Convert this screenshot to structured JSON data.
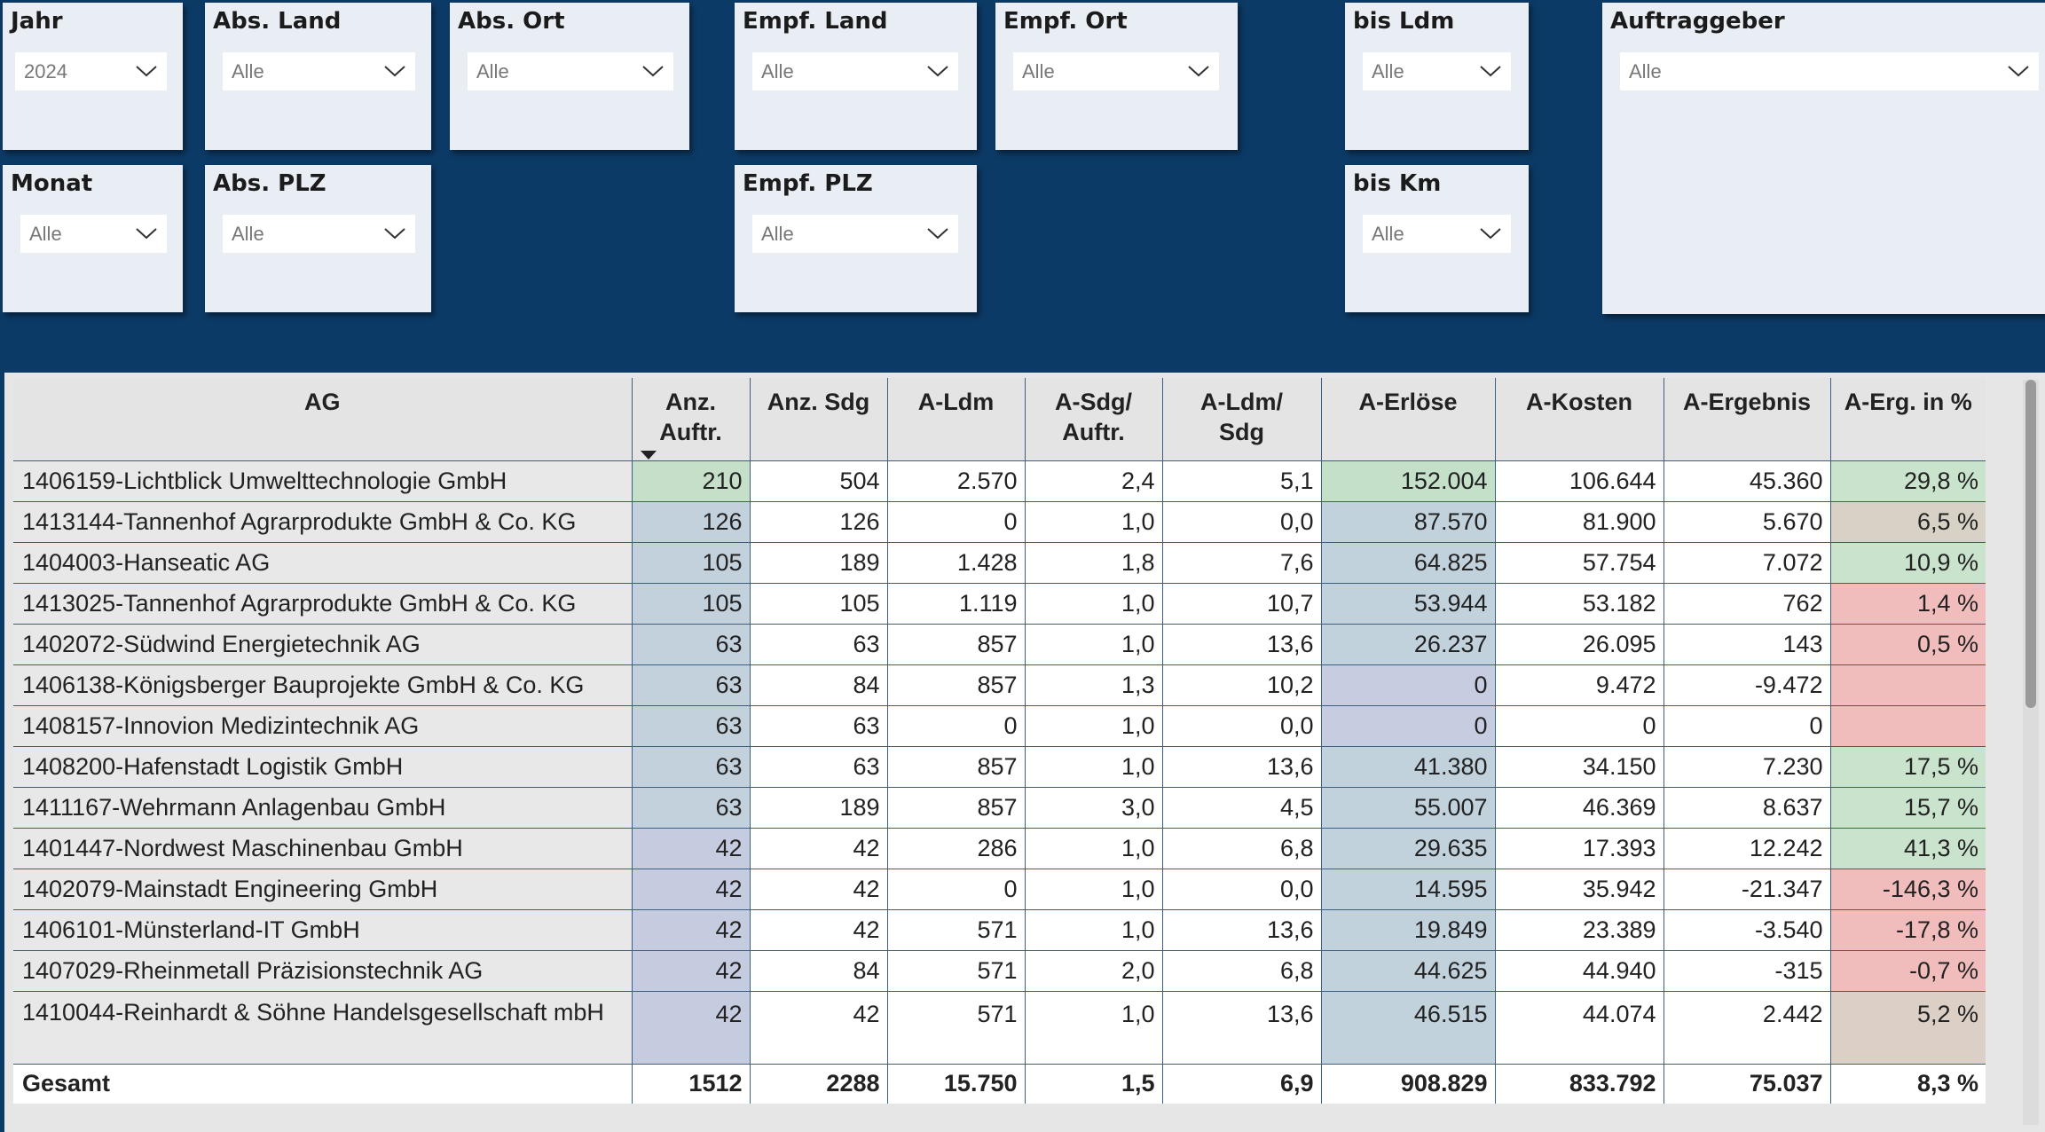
{
  "slicers": {
    "jahr": {
      "title": "Jahr",
      "value": "2024"
    },
    "abs_land": {
      "title": "Abs. Land",
      "value": "Alle"
    },
    "abs_ort": {
      "title": "Abs. Ort",
      "value": "Alle"
    },
    "empf_land": {
      "title": "Empf. Land",
      "value": "Alle"
    },
    "empf_ort": {
      "title": "Empf. Ort",
      "value": "Alle"
    },
    "bis_ldm": {
      "title": "bis Ldm",
      "value": "Alle"
    },
    "auftraggeber": {
      "title": "Auftraggeber",
      "value": "Alle"
    },
    "monat": {
      "title": "Monat",
      "value": "Alle"
    },
    "abs_plz": {
      "title": "Abs. PLZ",
      "value": "Alle"
    },
    "empf_plz": {
      "title": "Empf. PLZ",
      "value": "Alle"
    },
    "bis_km": {
      "title": "bis Km",
      "value": "Alle"
    }
  },
  "table": {
    "headers": {
      "ag": "AG",
      "anz_auftr_1": "Anz.",
      "anz_auftr_2": "Auftr.",
      "anz_sdg": "Anz. Sdg",
      "a_ldm": "A-Ldm",
      "a_sdg_auftr_1": "A-Sdg/",
      "a_sdg_auftr_2": "Auftr.",
      "a_ldm_sdg_1": "A-Ldm/",
      "a_ldm_sdg_2": "Sdg",
      "a_erloese": "A-Erlöse",
      "a_kosten": "A-Kosten",
      "a_ergebnis": "A-Ergebnis",
      "a_erg_pct": "A-Erg. in %"
    },
    "rows": [
      {
        "ag": "1406159-Lichtblick Umwelttechnologie GmbH",
        "anz": "210",
        "sdg": "504",
        "ldm": "2.570",
        "sdg_auftr": "2,4",
        "ldm_sdg": "5,1",
        "erloese": "152.004",
        "kosten": "106.644",
        "ergebnis": "45.360",
        "pct": "29,8 %"
      },
      {
        "ag": "1413144-Tannenhof Agrarprodukte GmbH & Co. KG",
        "anz": "126",
        "sdg": "126",
        "ldm": "0",
        "sdg_auftr": "1,0",
        "ldm_sdg": "0,0",
        "erloese": "87.570",
        "kosten": "81.900",
        "ergebnis": "5.670",
        "pct": "6,5 %"
      },
      {
        "ag": "1404003-Hanseatic AG",
        "anz": "105",
        "sdg": "189",
        "ldm": "1.428",
        "sdg_auftr": "1,8",
        "ldm_sdg": "7,6",
        "erloese": "64.825",
        "kosten": "57.754",
        "ergebnis": "7.072",
        "pct": "10,9 %"
      },
      {
        "ag": "1413025-Tannenhof Agrarprodukte GmbH & Co. KG",
        "anz": "105",
        "sdg": "105",
        "ldm": "1.119",
        "sdg_auftr": "1,0",
        "ldm_sdg": "10,7",
        "erloese": "53.944",
        "kosten": "53.182",
        "ergebnis": "762",
        "pct": "1,4 %"
      },
      {
        "ag": "1402072-Südwind Energietechnik AG",
        "anz": "63",
        "sdg": "63",
        "ldm": "857",
        "sdg_auftr": "1,0",
        "ldm_sdg": "13,6",
        "erloese": "26.237",
        "kosten": "26.095",
        "ergebnis": "143",
        "pct": "0,5 %"
      },
      {
        "ag": "1406138-Königsberger Bauprojekte GmbH & Co. KG",
        "anz": "63",
        "sdg": "84",
        "ldm": "857",
        "sdg_auftr": "1,3",
        "ldm_sdg": "10,2",
        "erloese": "0",
        "kosten": "9.472",
        "ergebnis": "-9.472",
        "pct": ""
      },
      {
        "ag": "1408157-Innovion Medizintechnik AG",
        "anz": "63",
        "sdg": "63",
        "ldm": "0",
        "sdg_auftr": "1,0",
        "ldm_sdg": "0,0",
        "erloese": "0",
        "kosten": "0",
        "ergebnis": "0",
        "pct": ""
      },
      {
        "ag": "1408200-Hafenstadt Logistik GmbH",
        "anz": "63",
        "sdg": "63",
        "ldm": "857",
        "sdg_auftr": "1,0",
        "ldm_sdg": "13,6",
        "erloese": "41.380",
        "kosten": "34.150",
        "ergebnis": "7.230",
        "pct": "17,5 %"
      },
      {
        "ag": "1411167-Wehrmann Anlagenbau GmbH",
        "anz": "63",
        "sdg": "189",
        "ldm": "857",
        "sdg_auftr": "3,0",
        "ldm_sdg": "4,5",
        "erloese": "55.007",
        "kosten": "46.369",
        "ergebnis": "8.637",
        "pct": "15,7 %"
      },
      {
        "ag": "1401447-Nordwest Maschinenbau GmbH",
        "anz": "42",
        "sdg": "42",
        "ldm": "286",
        "sdg_auftr": "1,0",
        "ldm_sdg": "6,8",
        "erloese": "29.635",
        "kosten": "17.393",
        "ergebnis": "12.242",
        "pct": "41,3 %"
      },
      {
        "ag": "1402079-Mainstadt Engineering GmbH",
        "anz": "42",
        "sdg": "42",
        "ldm": "0",
        "sdg_auftr": "1,0",
        "ldm_sdg": "0,0",
        "erloese": "14.595",
        "kosten": "35.942",
        "ergebnis": "-21.347",
        "pct": "-146,3 %"
      },
      {
        "ag": "1406101-Münsterland-IT GmbH",
        "anz": "42",
        "sdg": "42",
        "ldm": "571",
        "sdg_auftr": "1,0",
        "ldm_sdg": "13,6",
        "erloese": "19.849",
        "kosten": "23.389",
        "ergebnis": "-3.540",
        "pct": "-17,8 %"
      },
      {
        "ag": "1407029-Rheinmetall Präzisionstechnik AG",
        "anz": "42",
        "sdg": "84",
        "ldm": "571",
        "sdg_auftr": "2,0",
        "ldm_sdg": "6,8",
        "erloese": "44.625",
        "kosten": "44.940",
        "ergebnis": "-315",
        "pct": "-0,7 %"
      },
      {
        "ag": "1410044-Reinhardt & Söhne Handelsgesellschaft mbH",
        "anz": "42",
        "sdg": "42",
        "ldm": "571",
        "sdg_auftr": "1,0",
        "ldm_sdg": "13,6",
        "erloese": "46.515",
        "kosten": "44.074",
        "ergebnis": "2.442",
        "pct": "5,2 %"
      }
    ],
    "total": {
      "ag": "Gesamt",
      "anz": "1512",
      "sdg": "2288",
      "ldm": "15.750",
      "sdg_auftr": "1,5",
      "ldm_sdg": "6,9",
      "erloese": "908.829",
      "kosten": "833.792",
      "ergebnis": "75.037",
      "pct": "8,3 %"
    }
  },
  "colors": {
    "background": "#0c3a66",
    "slicer_bg": "#e8eef3",
    "anz_high": "#c5dfc8",
    "anz_mid": "#c3d1dc",
    "anz_low": "#c6cce0",
    "erl_high": "#c4e0c8",
    "erl_mid": "#c2d2dc",
    "erl_low": "#c7cde1",
    "pct_green": "#c9e3cc",
    "pct_neutral": "#d8d2c6",
    "pct_red": "#f1bcbc",
    "pct_brown": "#dccfc6"
  }
}
